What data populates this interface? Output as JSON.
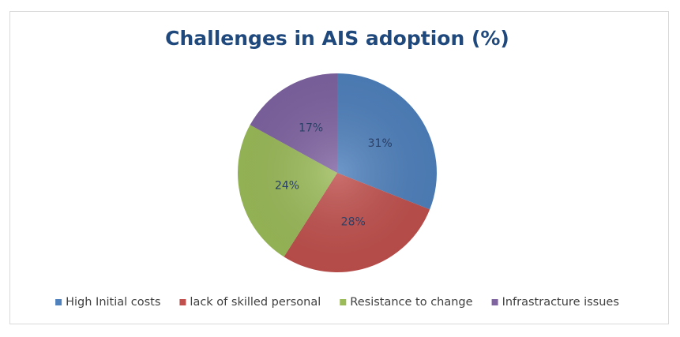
{
  "chart_data": {
    "type": "pie",
    "title": "Challenges in AIS adoption (%)",
    "categories": [
      "High Initial costs",
      "lack of skilled personal",
      "Resistance to change",
      "Infrastracture issues"
    ],
    "values": [
      31,
      28,
      24,
      17
    ],
    "value_labels": [
      "31%",
      "28%",
      "24%",
      "17%"
    ],
    "colors": [
      "#4f81bd",
      "#c0504d",
      "#9bbb59",
      "#8064a2"
    ],
    "legend": "bottom"
  }
}
